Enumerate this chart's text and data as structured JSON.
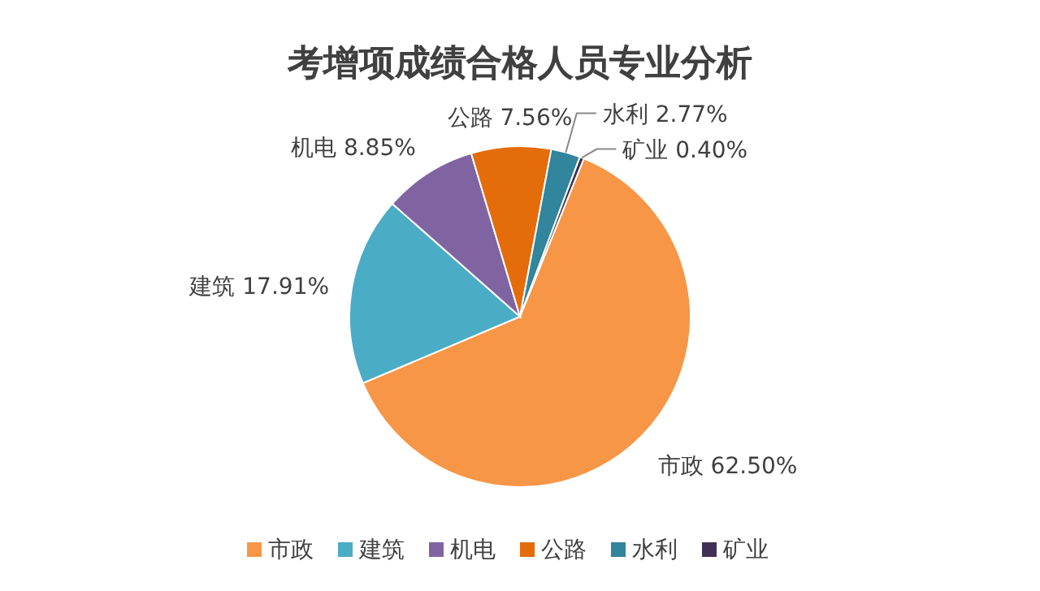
{
  "chart_data": {
    "type": "pie",
    "title": "考增项成绩合格人员专业分析",
    "categories": [
      "市政",
      "建筑",
      "机电",
      "公路",
      "水利",
      "矿业"
    ],
    "values": [
      62.5,
      17.91,
      8.85,
      7.56,
      2.77,
      0.4
    ],
    "value_labels": [
      "62.50%",
      "17.91%",
      "8.85%",
      "7.56%",
      "2.77%",
      "0.40%"
    ],
    "colors": [
      "#f79646",
      "#4bacc6",
      "#8064a2",
      "#e46c0a",
      "#31859c",
      "#403152"
    ],
    "legend": "bottom"
  }
}
